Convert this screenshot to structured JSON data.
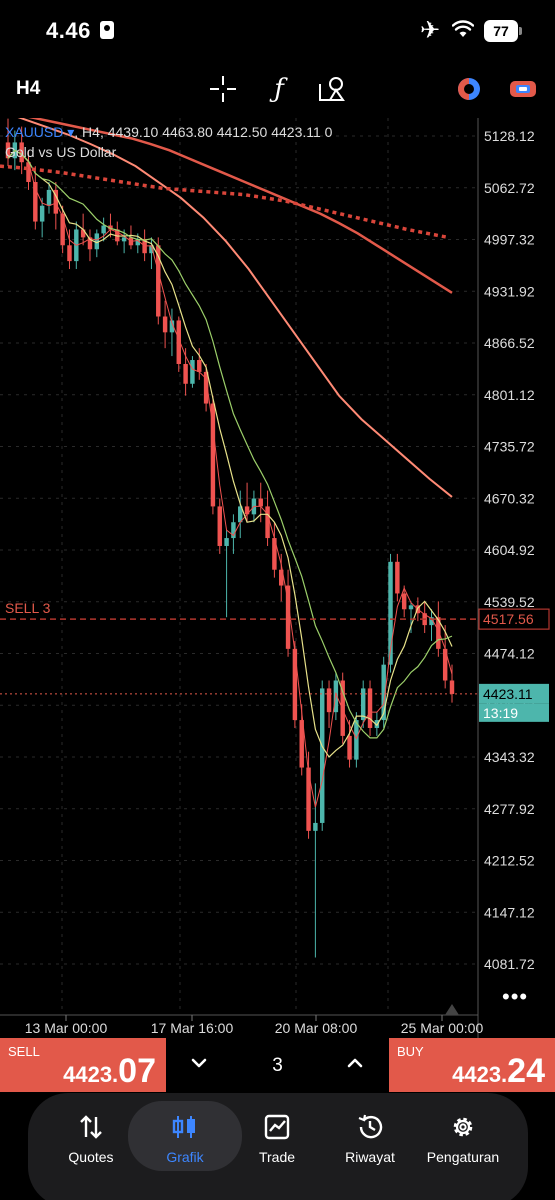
{
  "status_bar": {
    "time": "4.46",
    "battery": "77"
  },
  "toolbar": {
    "timeframe": "H4"
  },
  "chart": {
    "symbol": "XAUUSD",
    "ohlc_header": ", H4, 4439.10 4463.80 4412.50 4423.11 0",
    "description": "Gold vs US Dollar",
    "sell_line_label": "SELL 3",
    "order_price": "4517.56",
    "current_price": "4423.11",
    "countdown": "13:19",
    "colors": {
      "bull": "#4db6ac",
      "bear": "#ef5350",
      "ma_yellow": "#e8e28a",
      "ma_green": "#9ccf6a",
      "ma_salmon": "#ff8a75"
    }
  },
  "chart_data": {
    "type": "candlestick",
    "symbol": "XAUUSD",
    "timeframe": "H4",
    "ylim": [
      4040,
      5160
    ],
    "y_ticks": [
      "5128.12",
      "5062.72",
      "4997.32",
      "4931.92",
      "4866.52",
      "4801.12",
      "4735.72",
      "4670.32",
      "4604.92",
      "4539.52",
      "4474.12",
      "4408.72",
      "4343.32",
      "4277.92",
      "4212.52",
      "4147.12",
      "4081.72"
    ],
    "x_ticks": [
      "13 Mar 00:00",
      "17 Mar 16:00",
      "20 Mar 08:00",
      "25 Mar 00:00"
    ],
    "candles": [
      [
        5120,
        5150,
        5090,
        5100
      ],
      [
        5100,
        5135,
        5085,
        5120
      ],
      [
        5120,
        5140,
        5080,
        5095
      ],
      [
        5095,
        5110,
        5060,
        5070
      ],
      [
        5070,
        5090,
        5010,
        5020
      ],
      [
        5020,
        5050,
        5000,
        5040
      ],
      [
        5040,
        5070,
        5030,
        5060
      ],
      [
        5060,
        5070,
        5010,
        5030
      ],
      [
        5030,
        5040,
        4980,
        4990
      ],
      [
        4990,
        5010,
        4960,
        4970
      ],
      [
        4970,
        5020,
        4960,
        5010
      ],
      [
        5010,
        5030,
        4990,
        5000
      ],
      [
        5000,
        5010,
        4970,
        4985
      ],
      [
        4985,
        5010,
        4975,
        5005
      ],
      [
        5005,
        5025,
        4995,
        5015
      ],
      [
        5015,
        5030,
        5000,
        5010
      ],
      [
        5010,
        5020,
        4990,
        4995
      ],
      [
        4995,
        5010,
        4980,
        5000
      ],
      [
        5000,
        5015,
        4985,
        4990
      ],
      [
        4990,
        5005,
        4980,
        4998
      ],
      [
        4998,
        5010,
        4970,
        4980
      ],
      [
        4980,
        5000,
        4960,
        4990
      ],
      [
        4990,
        5000,
        4890,
        4900
      ],
      [
        4900,
        4920,
        4860,
        4880
      ],
      [
        4880,
        4910,
        4850,
        4895
      ],
      [
        4895,
        4900,
        4830,
        4840
      ],
      [
        4840,
        4860,
        4800,
        4815
      ],
      [
        4815,
        4850,
        4810,
        4845
      ],
      [
        4845,
        4860,
        4820,
        4830
      ],
      [
        4830,
        4840,
        4780,
        4790
      ],
      [
        4790,
        4800,
        4650,
        4660
      ],
      [
        4660,
        4670,
        4600,
        4610
      ],
      [
        4610,
        4630,
        4520,
        4620
      ],
      [
        4620,
        4650,
        4600,
        4640
      ],
      [
        4640,
        4680,
        4620,
        4660
      ],
      [
        4660,
        4690,
        4640,
        4650
      ],
      [
        4650,
        4680,
        4640,
        4670
      ],
      [
        4670,
        4690,
        4640,
        4660
      ],
      [
        4660,
        4680,
        4610,
        4620
      ],
      [
        4620,
        4640,
        4570,
        4580
      ],
      [
        4580,
        4600,
        4540,
        4560
      ],
      [
        4560,
        4580,
        4470,
        4480
      ],
      [
        4480,
        4490,
        4380,
        4390
      ],
      [
        4390,
        4410,
        4320,
        4330
      ],
      [
        4330,
        4350,
        4240,
        4250
      ],
      [
        4250,
        4310,
        4090,
        4260
      ],
      [
        4260,
        4440,
        4250,
        4430
      ],
      [
        4430,
        4440,
        4380,
        4400
      ],
      [
        4400,
        4450,
        4390,
        4440
      ],
      [
        4440,
        4450,
        4360,
        4370
      ],
      [
        4370,
        4390,
        4330,
        4340
      ],
      [
        4340,
        4400,
        4330,
        4390
      ],
      [
        4390,
        4440,
        4380,
        4430
      ],
      [
        4430,
        4440,
        4370,
        4380
      ],
      [
        4380,
        4400,
        4370,
        4390
      ],
      [
        4390,
        4470,
        4380,
        4460
      ],
      [
        4460,
        4600,
        4450,
        4590
      ],
      [
        4590,
        4600,
        4540,
        4550
      ],
      [
        4550,
        4560,
        4520,
        4530
      ],
      [
        4530,
        4540,
        4500,
        4535
      ],
      [
        4535,
        4545,
        4515,
        4525
      ],
      [
        4525,
        4540,
        4500,
        4510
      ],
      [
        4510,
        4530,
        4490,
        4520
      ],
      [
        4520,
        4540,
        4470,
        4480
      ],
      [
        4480,
        4510,
        4430,
        4440
      ],
      [
        4440,
        4460,
        4412,
        4423
      ]
    ],
    "ma_lines": [
      {
        "color": "salmon_thick",
        "points": [
          5160,
          5155,
          5150,
          5145,
          5140,
          5135,
          5130,
          5125,
          5118,
          5110,
          5100,
          5090,
          5080,
          5070,
          5060,
          5050,
          5040,
          5030,
          5018,
          5005,
          4990,
          4975,
          4960,
          4945,
          4930
        ]
      },
      {
        "color": "salmon",
        "points": [
          5160,
          5150,
          5140,
          5130,
          5118,
          5105,
          5090,
          5070,
          5050,
          5025,
          4995,
          4960,
          4920,
          4880,
          4840,
          4800,
          4770,
          4745,
          4720,
          4695,
          4672
        ]
      },
      {
        "color": "dotted_red",
        "points": [
          5090,
          5088,
          5085,
          5082,
          5078,
          5074,
          5070,
          5066,
          5062,
          5060,
          5058,
          5056,
          5054,
          5050,
          5046,
          5040,
          5034,
          5028,
          5022,
          5016,
          5010,
          5005,
          5000
        ]
      }
    ],
    "horizontal_lines": [
      {
        "label": "SELL 3",
        "value": 4517.56
      },
      {
        "label": "bid",
        "value": 4423.11
      }
    ]
  },
  "trade_bar": {
    "sell_label": "SELL",
    "sell_price_small": "4423.",
    "sell_price_large": "07",
    "buy_label": "BUY",
    "buy_price_small": "4423.",
    "buy_price_large": "24",
    "volume": "3"
  },
  "nav": {
    "items": [
      {
        "label": "Quotes",
        "icon": "quotes-arrows-icon"
      },
      {
        "label": "Grafik",
        "icon": "candlestick-chart-icon"
      },
      {
        "label": "Trade",
        "icon": "trade-chart-icon"
      },
      {
        "label": "Riwayat",
        "icon": "history-clock-icon"
      },
      {
        "label": "Pengaturan",
        "icon": "gear-icon"
      }
    ]
  }
}
